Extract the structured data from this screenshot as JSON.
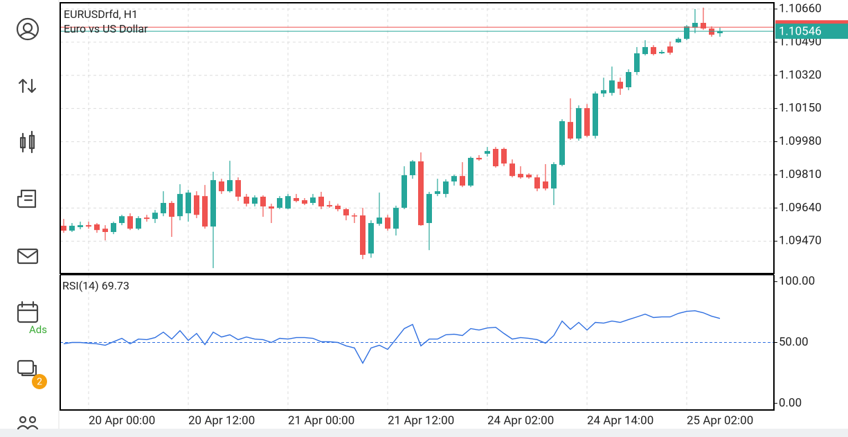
{
  "sidebar": {
    "ads": "Ads",
    "badge": "2"
  },
  "chart_data": [
    {
      "type": "candlestick",
      "title": "EURUSDrfd, H1",
      "subtitle": "Euro vs US Dollar",
      "up_color": "#26a69a",
      "down_color": "#ef5350",
      "grid": true,
      "bid": 1.10546,
      "ask": 1.10567,
      "categories": [
        null,
        null,
        null,
        "20 Apr 00:00",
        null,
        null,
        null,
        null,
        null,
        null,
        null,
        null,
        null,
        null,
        null,
        "20 Apr 12:00",
        null,
        null,
        null,
        null,
        null,
        null,
        null,
        null,
        null,
        null,
        null,
        "21 Apr 00:00",
        null,
        null,
        null,
        null,
        null,
        null,
        null,
        null,
        null,
        null,
        null,
        "21 Apr 12:00",
        null,
        null,
        null,
        null,
        null,
        null,
        null,
        null,
        null,
        null,
        null,
        "24 Apr 02:00",
        null,
        null,
        null,
        null,
        null,
        null,
        null,
        null,
        null,
        null,
        null,
        "24 Apr 14:00",
        null,
        null,
        null,
        null,
        null,
        null,
        null,
        null,
        null,
        null,
        null,
        "25 Apr 02:00",
        null,
        null,
        null,
        null
      ],
      "open": [
        1.09549,
        1.09524,
        1.09542,
        1.09552,
        1.09556,
        1.09534,
        1.09517,
        1.09563,
        1.09598,
        1.09534,
        1.09591,
        1.09584,
        1.09613,
        1.09666,
        1.09598,
        1.09613,
        1.09705,
        1.09701,
        1.09545,
        1.09776,
        1.09726,
        1.09783,
        1.09698,
        1.09662,
        1.09698,
        1.09648,
        1.09641,
        1.09637,
        1.09691,
        1.0968,
        1.09666,
        1.09698,
        1.09655,
        1.09652,
        1.09634,
        1.09602,
        1.09602,
        1.09407,
        1.09559,
        1.09591,
        1.09534,
        1.09641,
        1.09808,
        1.09879,
        1.09563,
        1.09712,
        1.09712,
        1.09776,
        1.09804,
        1.09755,
        1.09897,
        1.09918,
        1.09943,
        1.09943,
        1.09868,
        1.09815,
        1.09811,
        1.09797,
        1.09776,
        1.0974,
        1.09861,
        1.10081,
        1.09996,
        1.10152,
        1.1001,
        1.10227,
        1.1023,
        1.10287,
        1.10259,
        1.10337,
        1.10429,
        1.10465,
        1.10433,
        1.10468,
        1.10489,
        1.10507,
        1.10564,
        1.10589,
        1.1056,
        1.10536
      ],
      "high": [
        1.09584,
        1.09563,
        1.0957,
        1.0957,
        1.09563,
        1.09552,
        1.0957,
        1.09605,
        1.09613,
        1.09598,
        1.09605,
        1.0963,
        1.09726,
        1.09676,
        1.09762,
        1.09733,
        1.09726,
        1.09758,
        1.09826,
        1.0979,
        1.09882,
        1.09797,
        1.09712,
        1.09705,
        1.09705,
        1.09662,
        1.09701,
        1.09712,
        1.09712,
        1.09691,
        1.09712,
        1.09723,
        1.09676,
        1.09662,
        1.09641,
        1.09613,
        1.09641,
        1.09577,
        1.09719,
        1.09605,
        1.09652,
        1.09854,
        1.09886,
        1.09925,
        1.09723,
        1.0979,
        1.09787,
        1.09811,
        1.09875,
        1.09904,
        1.09911,
        1.09953,
        1.09953,
        1.0995,
        1.09889,
        1.09854,
        1.09818,
        1.09811,
        1.09865,
        1.09875,
        1.10095,
        1.10202,
        1.10166,
        1.10173,
        1.10237,
        1.10308,
        1.10365,
        1.10308,
        1.10351,
        1.10465,
        1.105,
        1.10475,
        1.1045,
        1.10493,
        1.10514,
        1.10578,
        1.1066,
        1.10667,
        1.10571,
        1.10564
      ],
      "low": [
        1.09513,
        1.09517,
        1.09531,
        1.09534,
        1.09513,
        1.09474,
        1.09506,
        1.09552,
        1.09527,
        1.09527,
        1.0957,
        1.09563,
        1.09598,
        1.09492,
        1.09577,
        1.0957,
        1.09588,
        1.09534,
        1.09332,
        1.09712,
        1.09719,
        1.09676,
        1.09648,
        1.09648,
        1.09595,
        1.09563,
        1.09634,
        1.09634,
        1.09669,
        1.09655,
        1.09655,
        1.09634,
        1.09641,
        1.09623,
        1.09577,
        1.09563,
        1.09378,
        1.09385,
        1.09549,
        1.09524,
        1.09499,
        1.09634,
        1.0979,
        1.09549,
        1.09424,
        1.09701,
        1.09694,
        1.09755,
        1.09747,
        1.09747,
        1.09882,
        1.09904,
        1.09847,
        1.09854,
        1.09797,
        1.0979,
        1.0979,
        1.09726,
        1.0973,
        1.09655,
        1.09854,
        1.09989,
        1.09985,
        1.10003,
        1.09996,
        1.10209,
        1.10216,
        1.1022,
        1.10244,
        1.10323,
        1.10422,
        1.10422,
        1.10429,
        1.10426,
        1.10486,
        1.105,
        1.10536,
        1.10553,
        1.10518,
        1.10518
      ],
      "close": [
        1.09524,
        1.09549,
        1.09552,
        1.09545,
        1.09527,
        1.09517,
        1.09563,
        1.09598,
        1.09534,
        1.09588,
        1.09584,
        1.09616,
        1.09666,
        1.09595,
        1.09712,
        1.09719,
        1.09605,
        1.09545,
        1.09783,
        1.09726,
        1.09783,
        1.09698,
        1.09662,
        1.09694,
        1.09648,
        1.09637,
        1.09691,
        1.09701,
        1.09676,
        1.09662,
        1.09694,
        1.09648,
        1.09648,
        1.09634,
        1.09602,
        1.09598,
        1.094,
        1.09563,
        1.09591,
        1.09534,
        1.09641,
        1.09808,
        1.09879,
        1.09552,
        1.09712,
        1.09726,
        1.09776,
        1.09804,
        1.09755,
        1.09897,
        1.09889,
        1.09932,
        1.09854,
        1.09868,
        1.09804,
        1.09797,
        1.09797,
        1.0974,
        1.0974,
        1.09865,
        1.10085,
        1.09996,
        1.10152,
        1.1001,
        1.10227,
        1.10244,
        1.10294,
        1.10252,
        1.10337,
        1.10433,
        1.10465,
        1.10429,
        1.1044,
        1.10436,
        1.10507,
        1.10571,
        1.10589,
        1.1056,
        1.10528,
        1.10546
      ],
      "ylim": [
        1.09304,
        1.10692
      ],
      "yticks": [
        {
          "value": 1.1066,
          "label": "1.10660"
        },
        {
          "value": 1.1049,
          "label": "1.10490"
        },
        {
          "value": 1.1032,
          "label": "1.10320"
        },
        {
          "value": 1.1015,
          "label": "1.10150"
        },
        {
          "value": 1.0998,
          "label": "1.09980"
        },
        {
          "value": 1.0981,
          "label": "1.09810"
        },
        {
          "value": 1.0964,
          "label": "1.09640"
        },
        {
          "value": 1.0947,
          "label": "1.09470"
        }
      ]
    },
    {
      "type": "line",
      "title": "RSI(14) 69.73",
      "color": "#2f6fe0",
      "grid": false,
      "level": 50,
      "values": [
        48.9,
        50.0,
        50.0,
        49.4,
        48.9,
        47.7,
        50.6,
        53.4,
        48.9,
        52.8,
        52.3,
        54.0,
        58.5,
        52.8,
        59.7,
        51.7,
        57.4,
        48.3,
        58.5,
        54.5,
        56.3,
        52.3,
        54.5,
        52.8,
        52.3,
        50.0,
        53.4,
        52.8,
        54.0,
        54.0,
        53.4,
        50.6,
        50.6,
        50.0,
        47.2,
        45.5,
        33.0,
        45.5,
        47.7,
        44.3,
        52.8,
        61.4,
        64.8,
        47.2,
        52.8,
        52.8,
        56.3,
        56.8,
        55.7,
        61.4,
        60.2,
        61.9,
        62.5,
        57.4,
        52.8,
        54.0,
        53.4,
        52.3,
        49.4,
        55.7,
        67.6,
        60.8,
        66.5,
        60.2,
        66.5,
        65.9,
        67.6,
        66.5,
        68.8,
        71.0,
        73.3,
        70.5,
        71.0,
        71.0,
        73.9,
        75.6,
        76.1,
        74.4,
        71.6,
        69.73
      ],
      "ylim": [
        -5.5,
        105.5
      ],
      "yticks": [
        {
          "value": 100,
          "label": "100.00"
        },
        {
          "value": 50,
          "label": "50.00"
        },
        {
          "value": 0,
          "label": "0.00"
        }
      ]
    }
  ]
}
